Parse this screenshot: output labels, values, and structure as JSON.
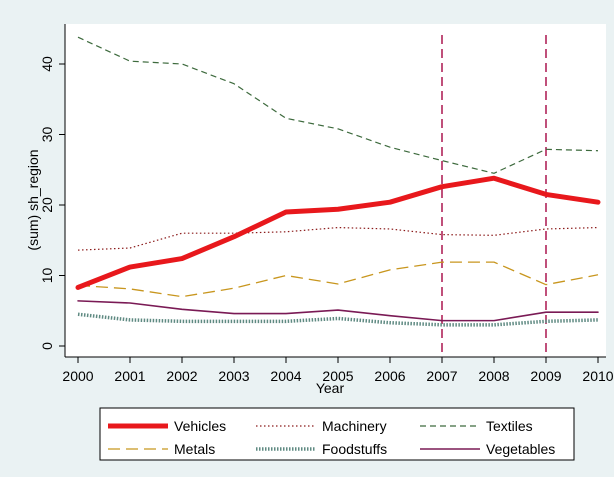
{
  "chart_data": {
    "type": "line",
    "title": "",
    "xlabel": "Year",
    "ylabel": "(sum) sh_region",
    "x": [
      2000,
      2001,
      2002,
      2003,
      2004,
      2005,
      2006,
      2007,
      2008,
      2009,
      2010
    ],
    "xlim": [
      2000,
      2010
    ],
    "ylim": [
      0,
      44
    ],
    "x_ticks": [
      "2000",
      "2001",
      "2002",
      "2003",
      "2004",
      "2005",
      "2006",
      "2007",
      "2008",
      "2009",
      "2010"
    ],
    "y_ticks": [
      "0",
      "10",
      "20",
      "30",
      "40"
    ],
    "y_tick_values": [
      0,
      10,
      20,
      30,
      40
    ],
    "grid": false,
    "reference_lines_x": [
      2007,
      2009
    ],
    "reference_line_color": "#b0245a",
    "legend_position": "bottom",
    "series": [
      {
        "name": "Vehicles",
        "color": "#e8181c",
        "style": "solid-thick",
        "values": [
          8.3,
          11.2,
          12.4,
          15.5,
          19.0,
          19.4,
          20.4,
          22.6,
          23.8,
          21.5,
          20.4
        ]
      },
      {
        "name": "Machinery",
        "color": "#8b1a1a",
        "style": "dotted",
        "values": [
          13.6,
          13.9,
          16.0,
          16.0,
          16.2,
          16.8,
          16.6,
          15.8,
          15.7,
          16.6,
          16.8
        ]
      },
      {
        "name": "Textiles",
        "color": "#3d6a3d",
        "style": "dashed",
        "values": [
          43.8,
          40.4,
          40.0,
          37.2,
          32.3,
          30.8,
          28.2,
          26.3,
          24.5,
          27.9,
          27.7
        ]
      },
      {
        "name": "Metals",
        "color": "#c8961e",
        "style": "long-dash",
        "values": [
          8.6,
          8.1,
          7.0,
          8.2,
          10.0,
          8.8,
          10.8,
          11.9,
          11.9,
          8.7,
          10.1
        ]
      },
      {
        "name": "Foodstuffs",
        "color": "#5f8a82",
        "style": "beaded",
        "values": [
          4.5,
          3.7,
          3.5,
          3.5,
          3.5,
          3.9,
          3.3,
          3.0,
          3.0,
          3.5,
          3.7
        ]
      },
      {
        "name": "Vegetables",
        "color": "#7a1a55",
        "style": "solid",
        "values": [
          6.4,
          6.1,
          5.2,
          4.6,
          4.6,
          5.1,
          4.3,
          3.6,
          3.6,
          4.8,
          4.8
        ]
      }
    ]
  }
}
